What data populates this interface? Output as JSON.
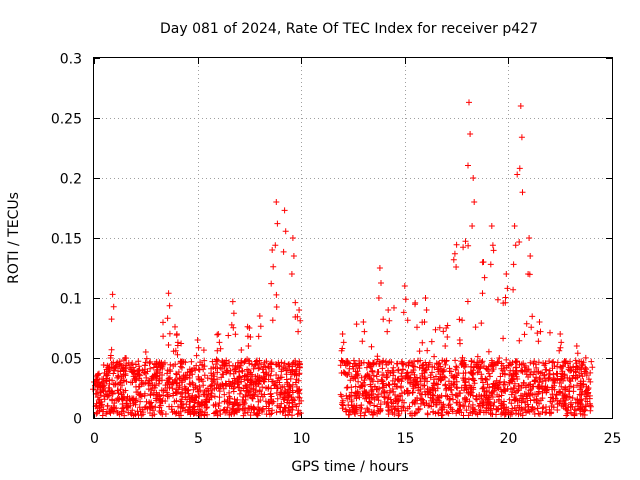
{
  "chart_data": {
    "type": "scatter",
    "title": "Day 081 of 2024, Rate Of TEC Index for receiver p427",
    "xlabel": "GPS time / hours",
    "ylabel": "ROTI / TECUs",
    "xlim": [
      0,
      25
    ],
    "ylim": [
      0,
      0.3
    ],
    "xticks": [
      0,
      5,
      10,
      15,
      20,
      25
    ],
    "xtick_labels": [
      "0",
      "5",
      "10",
      "15",
      "20",
      "25"
    ],
    "yticks": [
      0,
      0.05,
      0.1,
      0.15,
      0.2,
      0.25,
      0.3
    ],
    "ytick_labels": [
      "0",
      "0.05",
      "0.1",
      "0.15",
      "0.2",
      "0.25",
      "0.3"
    ],
    "grid": true,
    "marker": "+",
    "color": "#ff0000",
    "data_gap_hours": [
      10.0,
      11.9
    ],
    "envelope": [
      {
        "x": 0.0,
        "y": 0.03
      },
      {
        "x": 0.8,
        "y": 0.05
      },
      {
        "x": 0.9,
        "y": 0.103
      },
      {
        "x": 1.5,
        "y": 0.05
      },
      {
        "x": 2.5,
        "y": 0.055
      },
      {
        "x": 3.6,
        "y": 0.104
      },
      {
        "x": 4.0,
        "y": 0.07
      },
      {
        "x": 5.0,
        "y": 0.065
      },
      {
        "x": 6.0,
        "y": 0.07
      },
      {
        "x": 6.7,
        "y": 0.097
      },
      {
        "x": 7.5,
        "y": 0.075
      },
      {
        "x": 8.0,
        "y": 0.085
      },
      {
        "x": 8.6,
        "y": 0.14
      },
      {
        "x": 8.8,
        "y": 0.18
      },
      {
        "x": 9.2,
        "y": 0.173
      },
      {
        "x": 9.6,
        "y": 0.15
      },
      {
        "x": 9.9,
        "y": 0.09
      },
      {
        "x": 12.0,
        "y": 0.07
      },
      {
        "x": 13.0,
        "y": 0.08
      },
      {
        "x": 13.8,
        "y": 0.125
      },
      {
        "x": 14.2,
        "y": 0.09
      },
      {
        "x": 15.0,
        "y": 0.11
      },
      {
        "x": 16.0,
        "y": 0.1
      },
      {
        "x": 17.0,
        "y": 0.075
      },
      {
        "x": 18.1,
        "y": 0.263
      },
      {
        "x": 18.3,
        "y": 0.2
      },
      {
        "x": 18.8,
        "y": 0.13
      },
      {
        "x": 19.2,
        "y": 0.16
      },
      {
        "x": 19.9,
        "y": 0.12
      },
      {
        "x": 20.3,
        "y": 0.16
      },
      {
        "x": 20.6,
        "y": 0.26
      },
      {
        "x": 21.0,
        "y": 0.15
      },
      {
        "x": 21.5,
        "y": 0.08
      },
      {
        "x": 22.5,
        "y": 0.07
      },
      {
        "x": 23.3,
        "y": 0.06
      },
      {
        "x": 24.0,
        "y": 0.047
      }
    ]
  }
}
